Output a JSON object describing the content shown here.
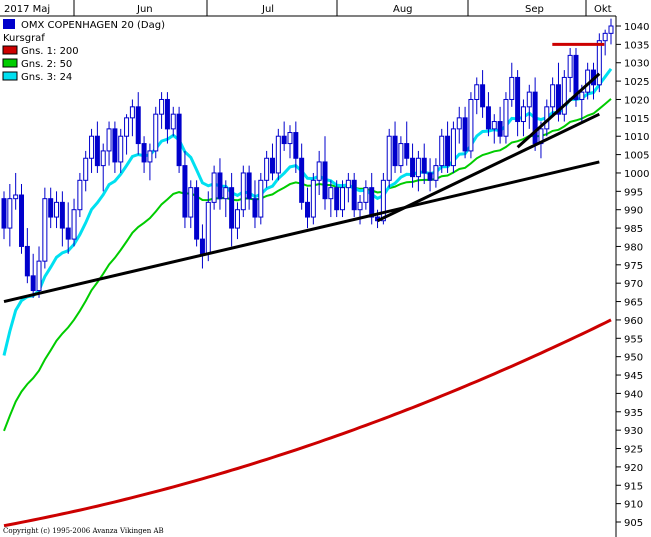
{
  "chart_data": {
    "type": "candlestick",
    "title": "OMX COPENHAGEN 20 (Dag)",
    "subtitle": "Kursgraf",
    "months": [
      "2017 Maj",
      "Jun",
      "Jul",
      "Aug",
      "Sep",
      "Okt"
    ],
    "y_ticks": [
      905,
      910,
      915,
      920,
      925,
      930,
      935,
      940,
      945,
      950,
      955,
      960,
      965,
      970,
      975,
      980,
      985,
      990,
      995,
      1000,
      1005,
      1010,
      1015,
      1020,
      1025,
      1030,
      1035,
      1040
    ],
    "ylim": [
      902,
      1043
    ],
    "grid": false,
    "legend_position": "top-left",
    "colors": {
      "candle": "#0000cc",
      "ma200": "#cc0000",
      "ma50": "#00cc00",
      "ma24": "#00e0f0",
      "trendline": "#000000",
      "resistance": "#cc0000"
    },
    "candles": [
      {
        "o": 993,
        "h": 995,
        "l": 982,
        "c": 985
      },
      {
        "o": 985,
        "h": 997,
        "l": 980,
        "c": 993
      },
      {
        "o": 993,
        "h": 1000,
        "l": 990,
        "c": 994
      },
      {
        "o": 994,
        "h": 997,
        "l": 978,
        "c": 980
      },
      {
        "o": 980,
        "h": 985,
        "l": 970,
        "c": 972
      },
      {
        "o": 972,
        "h": 978,
        "l": 966,
        "c": 968
      },
      {
        "o": 968,
        "h": 980,
        "l": 966,
        "c": 976
      },
      {
        "o": 976,
        "h": 996,
        "l": 974,
        "c": 993
      },
      {
        "o": 993,
        "h": 996,
        "l": 985,
        "c": 988
      },
      {
        "o": 988,
        "h": 995,
        "l": 985,
        "c": 992
      },
      {
        "o": 992,
        "h": 995,
        "l": 980,
        "c": 985
      },
      {
        "o": 985,
        "h": 992,
        "l": 978,
        "c": 982
      },
      {
        "o": 982,
        "h": 993,
        "l": 980,
        "c": 990
      },
      {
        "o": 990,
        "h": 1000,
        "l": 988,
        "c": 998
      },
      {
        "o": 998,
        "h": 1006,
        "l": 995,
        "c": 1004
      },
      {
        "o": 1004,
        "h": 1012,
        "l": 1000,
        "c": 1010
      },
      {
        "o": 1010,
        "h": 1014,
        "l": 1000,
        "c": 1002
      },
      {
        "o": 1002,
        "h": 1008,
        "l": 995,
        "c": 1006
      },
      {
        "o": 1006,
        "h": 1014,
        "l": 1002,
        "c": 1012
      },
      {
        "o": 1012,
        "h": 1014,
        "l": 1000,
        "c": 1003
      },
      {
        "o": 1003,
        "h": 1012,
        "l": 1000,
        "c": 1010
      },
      {
        "o": 1010,
        "h": 1016,
        "l": 1005,
        "c": 1015
      },
      {
        "o": 1015,
        "h": 1020,
        "l": 1010,
        "c": 1018
      },
      {
        "o": 1018,
        "h": 1022,
        "l": 1005,
        "c": 1008
      },
      {
        "o": 1008,
        "h": 1010,
        "l": 1000,
        "c": 1003
      },
      {
        "o": 1003,
        "h": 1008,
        "l": 998,
        "c": 1006
      },
      {
        "o": 1006,
        "h": 1018,
        "l": 1004,
        "c": 1016
      },
      {
        "o": 1016,
        "h": 1022,
        "l": 1012,
        "c": 1020
      },
      {
        "o": 1020,
        "h": 1022,
        "l": 1008,
        "c": 1012
      },
      {
        "o": 1012,
        "h": 1018,
        "l": 1010,
        "c": 1016
      },
      {
        "o": 1016,
        "h": 1018,
        "l": 1000,
        "c": 1002
      },
      {
        "o": 1002,
        "h": 1006,
        "l": 985,
        "c": 988
      },
      {
        "o": 988,
        "h": 998,
        "l": 985,
        "c": 996
      },
      {
        "o": 996,
        "h": 998,
        "l": 980,
        "c": 982
      },
      {
        "o": 982,
        "h": 986,
        "l": 974,
        "c": 978
      },
      {
        "o": 978,
        "h": 995,
        "l": 976,
        "c": 992
      },
      {
        "o": 992,
        "h": 1002,
        "l": 990,
        "c": 1000
      },
      {
        "o": 1000,
        "h": 1004,
        "l": 990,
        "c": 993
      },
      {
        "o": 993,
        "h": 998,
        "l": 988,
        "c": 996
      },
      {
        "o": 996,
        "h": 1000,
        "l": 980,
        "c": 985
      },
      {
        "o": 985,
        "h": 992,
        "l": 982,
        "c": 990
      },
      {
        "o": 990,
        "h": 1002,
        "l": 988,
        "c": 1000
      },
      {
        "o": 1000,
        "h": 1002,
        "l": 990,
        "c": 993
      },
      {
        "o": 993,
        "h": 998,
        "l": 985,
        "c": 988
      },
      {
        "o": 988,
        "h": 1000,
        "l": 986,
        "c": 998
      },
      {
        "o": 998,
        "h": 1006,
        "l": 996,
        "c": 1004
      },
      {
        "o": 1004,
        "h": 1008,
        "l": 998,
        "c": 1000
      },
      {
        "o": 1000,
        "h": 1012,
        "l": 998,
        "c": 1010
      },
      {
        "o": 1010,
        "h": 1014,
        "l": 1006,
        "c": 1008
      },
      {
        "o": 1008,
        "h": 1013,
        "l": 1004,
        "c": 1011
      },
      {
        "o": 1011,
        "h": 1014,
        "l": 1000,
        "c": 1004
      },
      {
        "o": 1004,
        "h": 1008,
        "l": 990,
        "c": 992
      },
      {
        "o": 992,
        "h": 996,
        "l": 985,
        "c": 988
      },
      {
        "o": 988,
        "h": 1000,
        "l": 986,
        "c": 998
      },
      {
        "o": 998,
        "h": 1006,
        "l": 994,
        "c": 1003
      },
      {
        "o": 1003,
        "h": 1010,
        "l": 990,
        "c": 993
      },
      {
        "o": 993,
        "h": 998,
        "l": 988,
        "c": 996
      },
      {
        "o": 996,
        "h": 998,
        "l": 988,
        "c": 990
      },
      {
        "o": 990,
        "h": 998,
        "l": 988,
        "c": 996
      },
      {
        "o": 996,
        "h": 1000,
        "l": 992,
        "c": 998
      },
      {
        "o": 998,
        "h": 1000,
        "l": 988,
        "c": 990
      },
      {
        "o": 990,
        "h": 994,
        "l": 986,
        "c": 992
      },
      {
        "o": 992,
        "h": 998,
        "l": 990,
        "c": 996
      },
      {
        "o": 996,
        "h": 1000,
        "l": 986,
        "c": 988
      },
      {
        "o": 988,
        "h": 990,
        "l": 985,
        "c": 987
      },
      {
        "o": 987,
        "h": 1000,
        "l": 986,
        "c": 998
      },
      {
        "o": 998,
        "h": 1012,
        "l": 996,
        "c": 1010
      },
      {
        "o": 1010,
        "h": 1014,
        "l": 1000,
        "c": 1002
      },
      {
        "o": 1002,
        "h": 1010,
        "l": 1000,
        "c": 1008
      },
      {
        "o": 1008,
        "h": 1014,
        "l": 1002,
        "c": 1004
      },
      {
        "o": 1004,
        "h": 1008,
        "l": 996,
        "c": 999
      },
      {
        "o": 999,
        "h": 1006,
        "l": 995,
        "c": 1004
      },
      {
        "o": 1004,
        "h": 1008,
        "l": 997,
        "c": 1000
      },
      {
        "o": 1000,
        "h": 1004,
        "l": 995,
        "c": 998
      },
      {
        "o": 998,
        "h": 1004,
        "l": 996,
        "c": 1002
      },
      {
        "o": 1002,
        "h": 1012,
        "l": 1000,
        "c": 1010
      },
      {
        "o": 1010,
        "h": 1014,
        "l": 1000,
        "c": 1002
      },
      {
        "o": 1002,
        "h": 1014,
        "l": 1000,
        "c": 1012
      },
      {
        "o": 1012,
        "h": 1018,
        "l": 1008,
        "c": 1015
      },
      {
        "o": 1015,
        "h": 1018,
        "l": 1004,
        "c": 1006
      },
      {
        "o": 1006,
        "h": 1022,
        "l": 1004,
        "c": 1020
      },
      {
        "o": 1020,
        "h": 1026,
        "l": 1016,
        "c": 1024
      },
      {
        "o": 1024,
        "h": 1028,
        "l": 1015,
        "c": 1018
      },
      {
        "o": 1018,
        "h": 1022,
        "l": 1010,
        "c": 1012
      },
      {
        "o": 1012,
        "h": 1016,
        "l": 1008,
        "c": 1014
      },
      {
        "o": 1014,
        "h": 1018,
        "l": 1008,
        "c": 1010
      },
      {
        "o": 1010,
        "h": 1022,
        "l": 1008,
        "c": 1020
      },
      {
        "o": 1020,
        "h": 1030,
        "l": 1018,
        "c": 1026
      },
      {
        "o": 1026,
        "h": 1028,
        "l": 1010,
        "c": 1014
      },
      {
        "o": 1014,
        "h": 1020,
        "l": 1010,
        "c": 1018
      },
      {
        "o": 1018,
        "h": 1024,
        "l": 1012,
        "c": 1022
      },
      {
        "o": 1022,
        "h": 1026,
        "l": 1006,
        "c": 1008
      },
      {
        "o": 1008,
        "h": 1014,
        "l": 1004,
        "c": 1012
      },
      {
        "o": 1012,
        "h": 1020,
        "l": 1010,
        "c": 1018
      },
      {
        "o": 1018,
        "h": 1026,
        "l": 1016,
        "c": 1024
      },
      {
        "o": 1024,
        "h": 1030,
        "l": 1014,
        "c": 1016
      },
      {
        "o": 1016,
        "h": 1028,
        "l": 1014,
        "c": 1026
      },
      {
        "o": 1026,
        "h": 1034,
        "l": 1022,
        "c": 1032
      },
      {
        "o": 1032,
        "h": 1034,
        "l": 1018,
        "c": 1020
      },
      {
        "o": 1020,
        "h": 1024,
        "l": 1014,
        "c": 1022
      },
      {
        "o": 1022,
        "h": 1030,
        "l": 1020,
        "c": 1028
      },
      {
        "o": 1028,
        "h": 1030,
        "l": 1020,
        "c": 1024
      },
      {
        "o": 1024,
        "h": 1038,
        "l": 1022,
        "c": 1036
      },
      {
        "o": 1036,
        "h": 1039,
        "l": 1032,
        "c": 1038
      },
      {
        "o": 1038,
        "h": 1042,
        "l": 1035,
        "c": 1040
      }
    ],
    "ma24_start": 944,
    "ma50_start": 926,
    "ma200_start": 904,
    "ma200_end": 960,
    "trendlines": [
      {
        "from": {
          "i": 0,
          "y": 965
        },
        "to": {
          "i": 102,
          "y": 1003
        }
      },
      {
        "from": {
          "i": 64,
          "y": 987
        },
        "to": {
          "i": 102,
          "y": 1016
        }
      },
      {
        "from": {
          "i": 88,
          "y": 1007
        },
        "to": {
          "i": 102,
          "y": 1027
        }
      }
    ],
    "resistance": {
      "from_i": 96,
      "to_i": 102,
      "y": 1035
    }
  },
  "legend": [
    {
      "label": "OMX COPENHAGEN 20 (Dag)",
      "color": "#0000cc",
      "kind": "title"
    },
    {
      "label": "Kursgraf",
      "color": "",
      "kind": "plain"
    },
    {
      "label": "Gns. 1: 200",
      "color": "#cc0000",
      "kind": "swatch"
    },
    {
      "label": "Gns. 2: 50",
      "color": "#00cc00",
      "kind": "swatch"
    },
    {
      "label": "Gns. 3: 24",
      "color": "#00e0f0",
      "kind": "swatch"
    }
  ],
  "copyright": "Copyright (c) 1995-2006 Avanza Vikingen AB"
}
